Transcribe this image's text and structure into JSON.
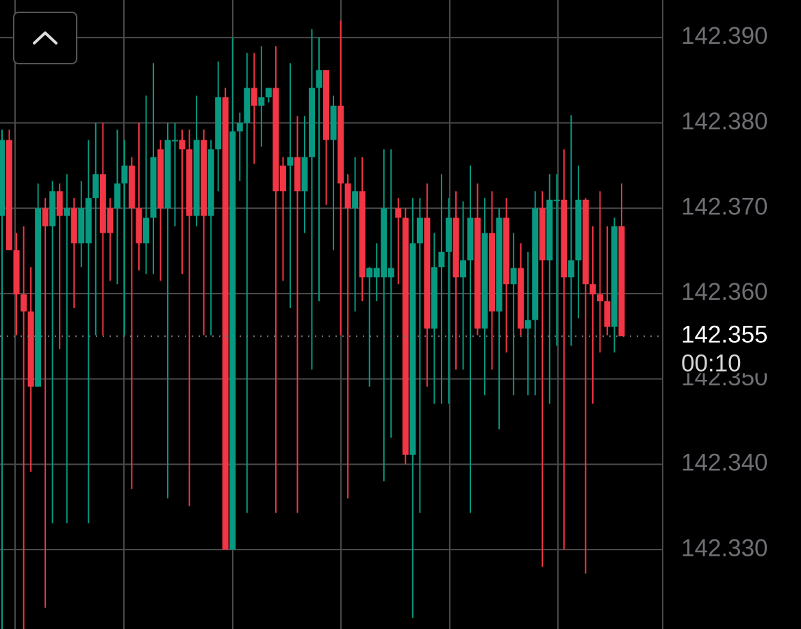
{
  "chart_data": {
    "type": "candlestick",
    "open": [
      142.3691,
      142.378,
      142.3651,
      142.3599,
      142.3579,
      142.3491,
      142.37,
      142.3679,
      142.372,
      142.3691,
      142.37,
      142.3659,
      142.3659,
      142.3712,
      142.374,
      142.37,
      142.37,
      142.3729,
      142.375,
      142.37,
      142.3659,
      142.3689,
      142.3769,
      142.37,
      142.378,
      142.378,
      142.3769,
      142.3691,
      142.378,
      142.3691,
      142.3769,
      142.383,
      142.33,
      142.379,
      142.38,
      142.3841,
      142.382,
      142.383,
      142.3841,
      142.375,
      142.375,
      142.376,
      142.372,
      142.376,
      142.3841,
      142.3862,
      142.378,
      142.382,
      142.3729,
      142.37,
      142.372,
      142.3619,
      142.3619,
      142.3619,
      142.3619,
      142.37,
      142.3689,
      142.3411,
      142.3659,
      142.3689,
      142.3559,
      142.3631,
      142.3649,
      142.3689,
      142.3619,
      142.3639,
      142.3689,
      142.3559,
      142.3671,
      142.3579,
      142.3689,
      142.3611,
      142.363,
      142.3559,
      142.3569,
      142.37,
      142.3639,
      142.371,
      142.371,
      142.3619,
      142.3639,
      142.371,
      142.3611,
      142.3599,
      142.3591,
      142.3561,
      142.3679
    ],
    "high": [
      142.3792,
      142.3792,
      142.3671,
      142.3679,
      142.3631,
      142.3729,
      142.3712,
      142.3732,
      142.3729,
      142.374,
      142.3712,
      142.3732,
      142.378,
      142.38,
      142.38,
      142.3712,
      142.3792,
      142.378,
      142.376,
      142.38,
      142.3832,
      142.387,
      142.378,
      142.38,
      142.38,
      142.3792,
      142.3792,
      142.3832,
      142.3792,
      142.378,
      142.3872,
      142.3841,
      142.39,
      142.3812,
      142.3882,
      142.3882,
      142.389,
      142.3841,
      142.389,
      142.376,
      142.387,
      142.3808,
      142.3808,
      142.391,
      142.39,
      142.3862,
      142.3832,
      142.392,
      142.374,
      142.376,
      142.376,
      142.3631,
      142.3659,
      142.3769,
      142.3769,
      142.3712,
      142.37,
      142.3712,
      142.3712,
      142.3729,
      142.3671,
      142.374,
      142.3712,
      142.372,
      142.3708,
      142.375,
      142.3729,
      142.3712,
      142.372,
      142.37,
      142.3712,
      142.3671,
      142.3659,
      142.3649,
      142.372,
      142.372,
      142.374,
      142.374,
      142.3769,
      142.3809,
      142.375,
      142.3712,
      142.3679,
      142.372,
      142.3679,
      142.3689,
      142.3729
    ],
    "low": [
      142.3207,
      142.3651,
      142.3551,
      142.3207,
      142.3391,
      142.3491,
      142.3232,
      142.3331,
      142.3535,
      142.3331,
      142.3583,
      142.3631,
      142.3331,
      142.3551,
      142.3551,
      142.3615,
      142.3611,
      142.3551,
      142.3371,
      142.3627,
      142.3623,
      142.3623,
      142.3615,
      142.336,
      142.3679,
      142.3623,
      142.3351,
      142.3679,
      142.3551,
      142.3551,
      142.372,
      142.33,
      142.33,
      142.3732,
      142.3343,
      142.3752,
      142.3772,
      142.3824,
      142.3343,
      142.3615,
      142.3583,
      142.3343,
      142.3671,
      142.3511,
      142.3591,
      142.3704,
      142.3651,
      142.3551,
      142.336,
      142.3579,
      142.3591,
      142.3491,
      142.3591,
      142.338,
      142.3431,
      142.3611,
      142.34,
      142.322,
      142.3343,
      142.3491,
      142.3471,
      142.3471,
      142.3471,
      142.3511,
      142.3511,
      142.3343,
      142.3551,
      142.3481,
      142.3511,
      142.3441,
      142.3531,
      142.3481,
      142.3551,
      142.3481,
      142.3481,
      142.328,
      142.3471,
      142.3539,
      142.33,
      142.3539,
      142.3571,
      142.3272,
      142.3471,
      142.3531,
      142.3551,
      142.3531,
      142.3551
    ],
    "close": [
      142.378,
      142.3651,
      142.3599,
      142.3579,
      142.3491,
      142.37,
      142.3679,
      142.372,
      142.3691,
      142.37,
      142.3659,
      142.37,
      142.3712,
      142.374,
      142.3671,
      142.3671,
      142.3729,
      142.375,
      142.37,
      142.3659,
      142.3689,
      142.376,
      142.37,
      142.378,
      142.378,
      142.3769,
      142.3691,
      142.378,
      142.3691,
      142.3769,
      142.383,
      142.33,
      142.379,
      142.38,
      142.3841,
      142.382,
      142.383,
      142.3841,
      142.372,
      142.372,
      142.376,
      142.372,
      142.376,
      142.3841,
      142.3862,
      142.378,
      142.382,
      142.3729,
      142.37,
      142.372,
      142.3619,
      142.363,
      142.363,
      142.37,
      142.363,
      142.3689,
      142.3411,
      142.3659,
      142.3689,
      142.3559,
      142.3631,
      142.3649,
      142.3689,
      142.3619,
      142.3639,
      142.3689,
      142.3559,
      142.3671,
      142.3579,
      142.3689,
      142.3611,
      142.363,
      142.3559,
      142.3569,
      142.37,
      142.3639,
      142.371,
      142.371,
      142.3619,
      142.3639,
      142.371,
      142.3611,
      142.3599,
      142.3591,
      142.3561,
      142.3679,
      142.355
    ],
    "up_color": "#089981",
    "down_color": "#f23645",
    "ylim": [
      142.3207,
      142.3944
    ],
    "yticks": [
      {
        "value": 142.39,
        "label": "142.390"
      },
      {
        "value": 142.38,
        "label": "142.380"
      },
      {
        "value": 142.37,
        "label": "142.370"
      },
      {
        "value": 142.36,
        "label": "142.360"
      },
      {
        "value": 142.35,
        "label": "142.350"
      },
      {
        "value": 142.34,
        "label": "142.340"
      },
      {
        "value": 142.33,
        "label": "142.330"
      }
    ],
    "grid": true,
    "current_price": 142.355,
    "countdown": "00:10"
  }
}
